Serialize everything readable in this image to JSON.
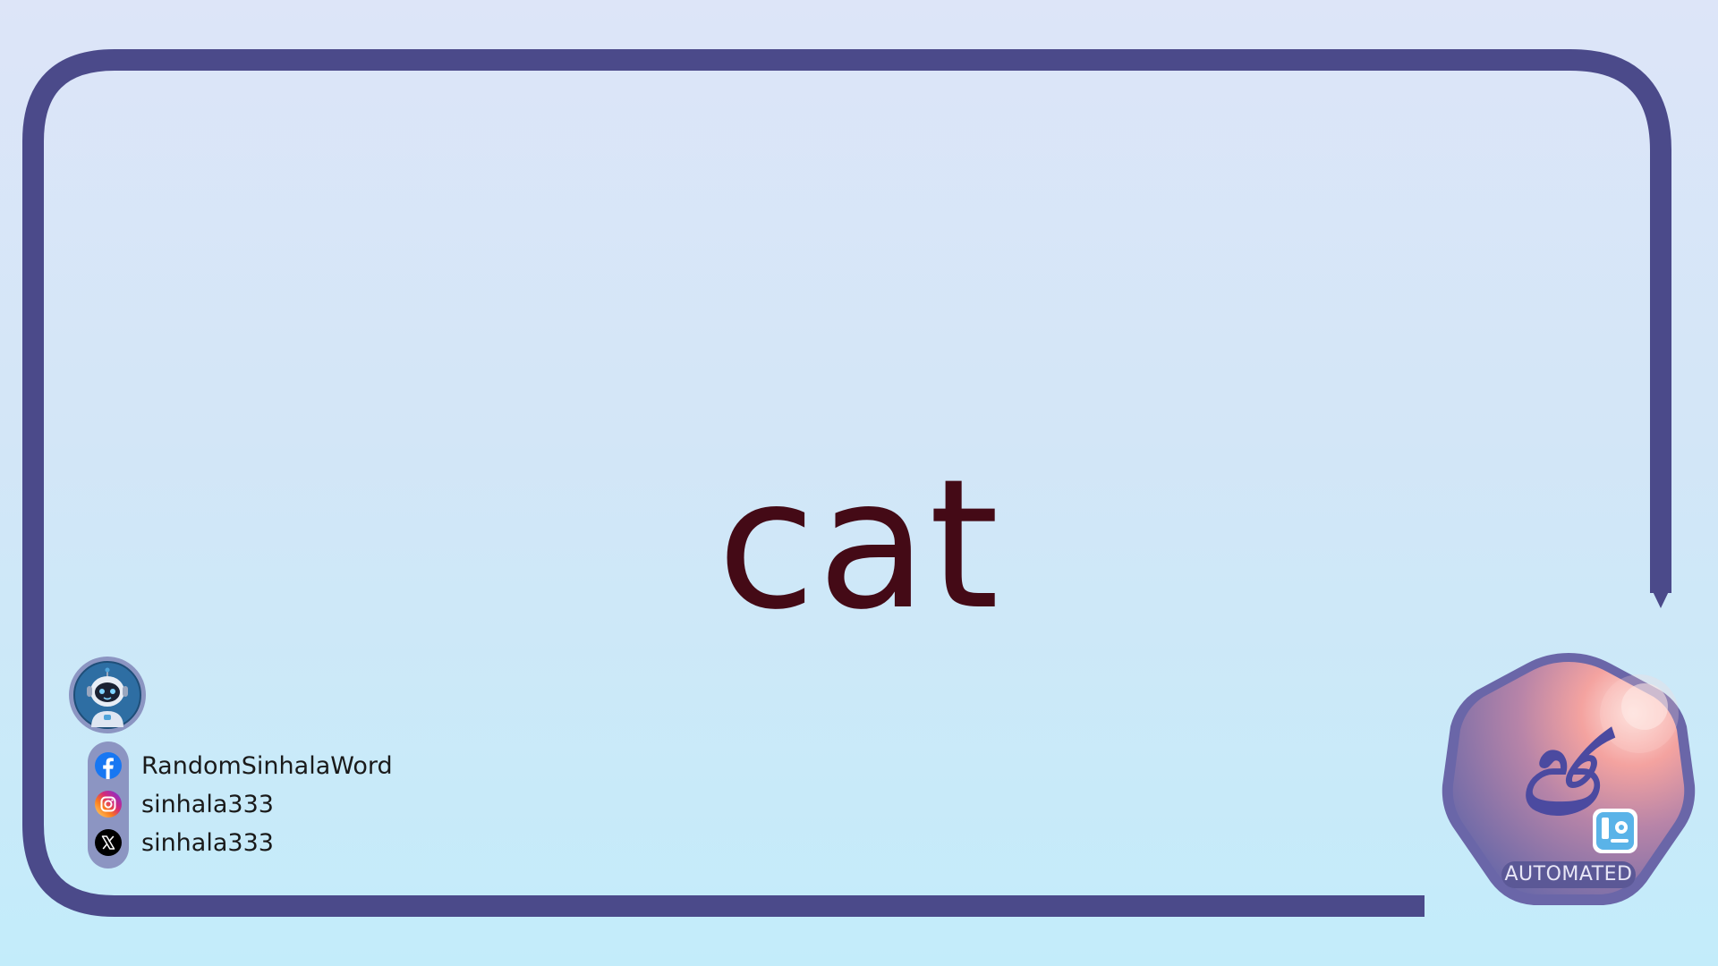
{
  "word": "cat",
  "social": {
    "facebook": "RandomSinhalaWord",
    "instagram": "sinhala333",
    "x": "sinhala333"
  },
  "badge": {
    "label": "AUTOMATED",
    "glyph": "ඡ"
  },
  "colors": {
    "frame": "#4b4a8a",
    "word": "#440a16",
    "background_top": "#dde5f8",
    "background_bottom": "#c3ecfa",
    "facebook": "#1877f2",
    "badge_accent": "#f4a3a0"
  },
  "icons": [
    "robot-avatar-icon",
    "facebook-icon",
    "instagram-icon",
    "x-icon",
    "badge-logo-icon"
  ]
}
